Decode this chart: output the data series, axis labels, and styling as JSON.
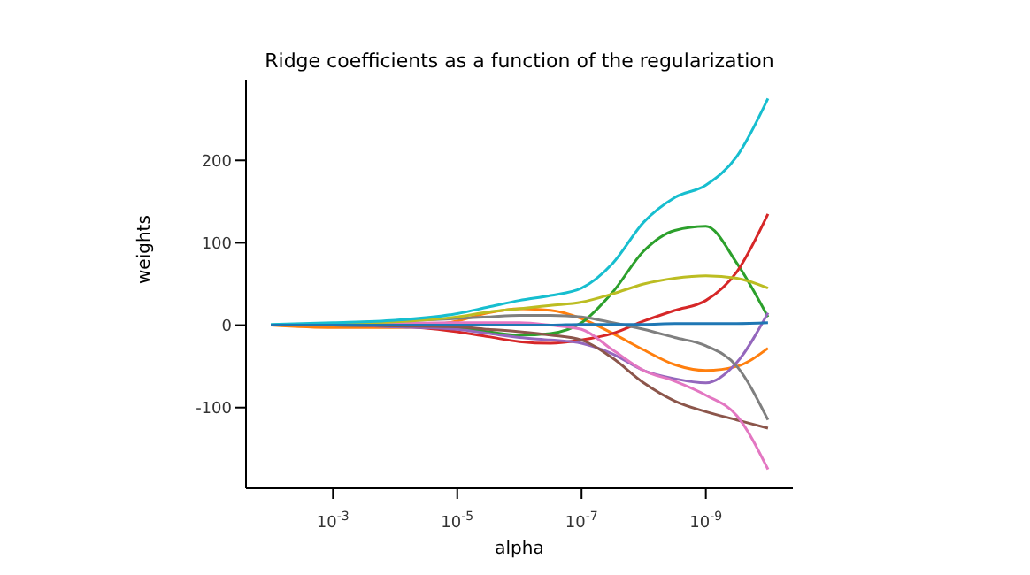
{
  "chart_data": {
    "type": "line",
    "title": "Ridge coefficients as a function of the regularization",
    "xlabel": "alpha",
    "ylabel": "weights",
    "log": "x",
    "grid": false,
    "legend": false,
    "marker": "none",
    "line_style": "solid",
    "x": [
      0.01,
      0.001,
      0.0001,
      1e-05,
      3.16e-06,
      1e-06,
      3.16e-07,
      1e-07,
      3.16e-08,
      1e-08,
      3.16e-09,
      1e-09,
      3.16e-10,
      1e-10
    ],
    "xlim": [
      0.0251,
      3.98e-11
    ],
    "ylim": [
      -198,
      298
    ],
    "xticks": [
      {
        "value": 0.001,
        "label": "10$^{-3}$"
      },
      {
        "value": 1e-05,
        "label": "10$^{-5}$"
      },
      {
        "value": 1e-07,
        "label": "10$^{-7}$"
      },
      {
        "value": 1e-09,
        "label": "10$^{-9}$"
      }
    ],
    "yticks": [
      -100,
      0,
      100,
      200
    ],
    "series": [
      {
        "color": "#1f77b4",
        "values": [
          0,
          0,
          0,
          0,
          0,
          0,
          0,
          1,
          1,
          1,
          2,
          2,
          2,
          3
        ]
      },
      {
        "color": "#ff7f0e",
        "values": [
          0,
          -3,
          -3,
          5,
          15,
          20,
          18,
          8,
          -10,
          -30,
          -48,
          -55,
          -50,
          -28
        ]
      },
      {
        "color": "#2ca02c",
        "values": [
          0,
          0,
          -1,
          -3,
          -8,
          -12,
          -10,
          3,
          40,
          90,
          115,
          120,
          75,
          10
        ]
      },
      {
        "color": "#d62728",
        "values": [
          0,
          1,
          -1,
          -8,
          -14,
          -20,
          -22,
          -18,
          -10,
          5,
          18,
          30,
          65,
          135
        ]
      },
      {
        "color": "#9467bd",
        "values": [
          0,
          0,
          -2,
          -5,
          -10,
          -15,
          -18,
          -22,
          -35,
          -55,
          -65,
          -70,
          -45,
          15
        ]
      },
      {
        "color": "#8c564b",
        "values": [
          0,
          0,
          -1,
          -2,
          -5,
          -8,
          -12,
          -18,
          -40,
          -70,
          -92,
          -105,
          -115,
          -125
        ]
      },
      {
        "color": "#e377c2",
        "values": [
          0,
          1,
          2,
          3,
          3,
          3,
          0,
          -5,
          -30,
          -55,
          -68,
          -85,
          -110,
          -175
        ]
      },
      {
        "color": "#7f7f7f",
        "values": [
          0,
          2,
          5,
          8,
          10,
          12,
          12,
          10,
          3,
          -5,
          -15,
          -25,
          -50,
          -115
        ]
      },
      {
        "color": "#bcbd22",
        "values": [
          0,
          2,
          4,
          10,
          16,
          20,
          24,
          28,
          38,
          50,
          57,
          60,
          57,
          45
        ]
      },
      {
        "color": "#17becf",
        "values": [
          1,
          3,
          6,
          14,
          22,
          30,
          36,
          45,
          75,
          125,
          155,
          170,
          205,
          275
        ]
      }
    ]
  }
}
